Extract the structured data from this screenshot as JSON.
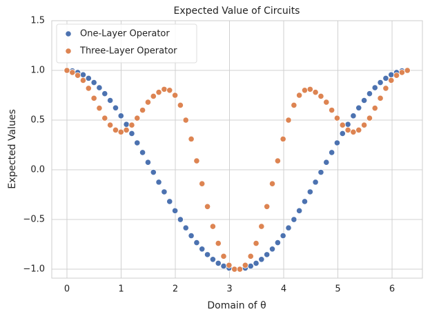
{
  "chart_data": {
    "type": "scatter",
    "title": "Expected Value of Circuits",
    "x_label": "Domain of θ",
    "y_label": "Expected Values",
    "x": [
      0,
      0.1,
      0.199,
      0.299,
      0.399,
      0.499,
      0.598,
      0.698,
      0.798,
      0.898,
      0.997,
      1.097,
      1.197,
      1.296,
      1.396,
      1.496,
      1.596,
      1.695,
      1.795,
      1.895,
      1.995,
      2.094,
      2.194,
      2.294,
      2.394,
      2.493,
      2.593,
      2.693,
      2.793,
      2.892,
      2.992,
      3.092,
      3.191,
      3.291,
      3.391,
      3.491,
      3.59,
      3.69,
      3.79,
      3.89,
      3.989,
      4.089,
      4.189,
      4.288,
      4.388,
      4.488,
      4.587,
      4.687,
      4.787,
      4.887,
      4.986,
      5.086,
      5.186,
      5.285,
      5.385,
      5.485,
      5.585,
      5.684,
      5.784,
      5.884,
      5.984,
      6.083,
      6.183,
      6.283
    ],
    "series": [
      {
        "name": "One-Layer Operator",
        "color": "#4c72b0",
        "values": [
          1,
          0.995,
          0.98,
          0.956,
          0.921,
          0.878,
          0.826,
          0.766,
          0.698,
          0.623,
          0.543,
          0.457,
          0.365,
          0.271,
          0.174,
          0.075,
          -0.025,
          -0.124,
          -0.222,
          -0.319,
          -0.412,
          -0.5,
          -0.584,
          -0.663,
          -0.733,
          -0.797,
          -0.853,
          -0.901,
          -0.94,
          -0.969,
          -0.989,
          -0.999,
          -0.999,
          -0.989,
          -0.969,
          -0.94,
          -0.901,
          -0.853,
          -0.797,
          -0.733,
          -0.663,
          -0.584,
          -0.5,
          -0.412,
          -0.319,
          -0.222,
          -0.124,
          -0.025,
          0.075,
          0.174,
          0.271,
          0.365,
          0.457,
          0.543,
          0.623,
          0.698,
          0.766,
          0.826,
          0.878,
          0.921,
          0.956,
          0.98,
          0.995,
          1
        ]
      },
      {
        "name": "Three-Layer Operator",
        "color": "#dd8452",
        "values": [
          1,
          0.98,
          0.95,
          0.9,
          0.82,
          0.72,
          0.62,
          0.52,
          0.45,
          0.4,
          0.38,
          0.4,
          0.45,
          0.52,
          0.6,
          0.68,
          0.74,
          0.78,
          0.81,
          0.8,
          0.75,
          0.65,
          0.5,
          0.31,
          0.09,
          -0.14,
          -0.37,
          -0.57,
          -0.74,
          -0.87,
          -0.96,
          -1,
          -1,
          -0.96,
          -0.87,
          -0.74,
          -0.57,
          -0.37,
          -0.14,
          0.09,
          0.31,
          0.5,
          0.65,
          0.75,
          0.8,
          0.81,
          0.78,
          0.74,
          0.68,
          0.6,
          0.52,
          0.45,
          0.4,
          0.38,
          0.4,
          0.45,
          0.52,
          0.62,
          0.72,
          0.82,
          0.9,
          0.95,
          0.98,
          1
        ]
      }
    ],
    "xlim": [
      -0.28,
      6.56
    ],
    "ylim": [
      -1.09,
      1.5
    ],
    "xticks": [
      0,
      1,
      2,
      3,
      4,
      5,
      6
    ],
    "yticks": [
      {
        "value": -1,
        "label": "−1.0"
      },
      {
        "value": -0.5,
        "label": "−0.5"
      },
      {
        "value": 0,
        "label": "0.0"
      },
      0.5,
      {
        "value": 1,
        "label": "1.0"
      },
      1.5
    ],
    "grid": true,
    "legend": "upper-left"
  }
}
